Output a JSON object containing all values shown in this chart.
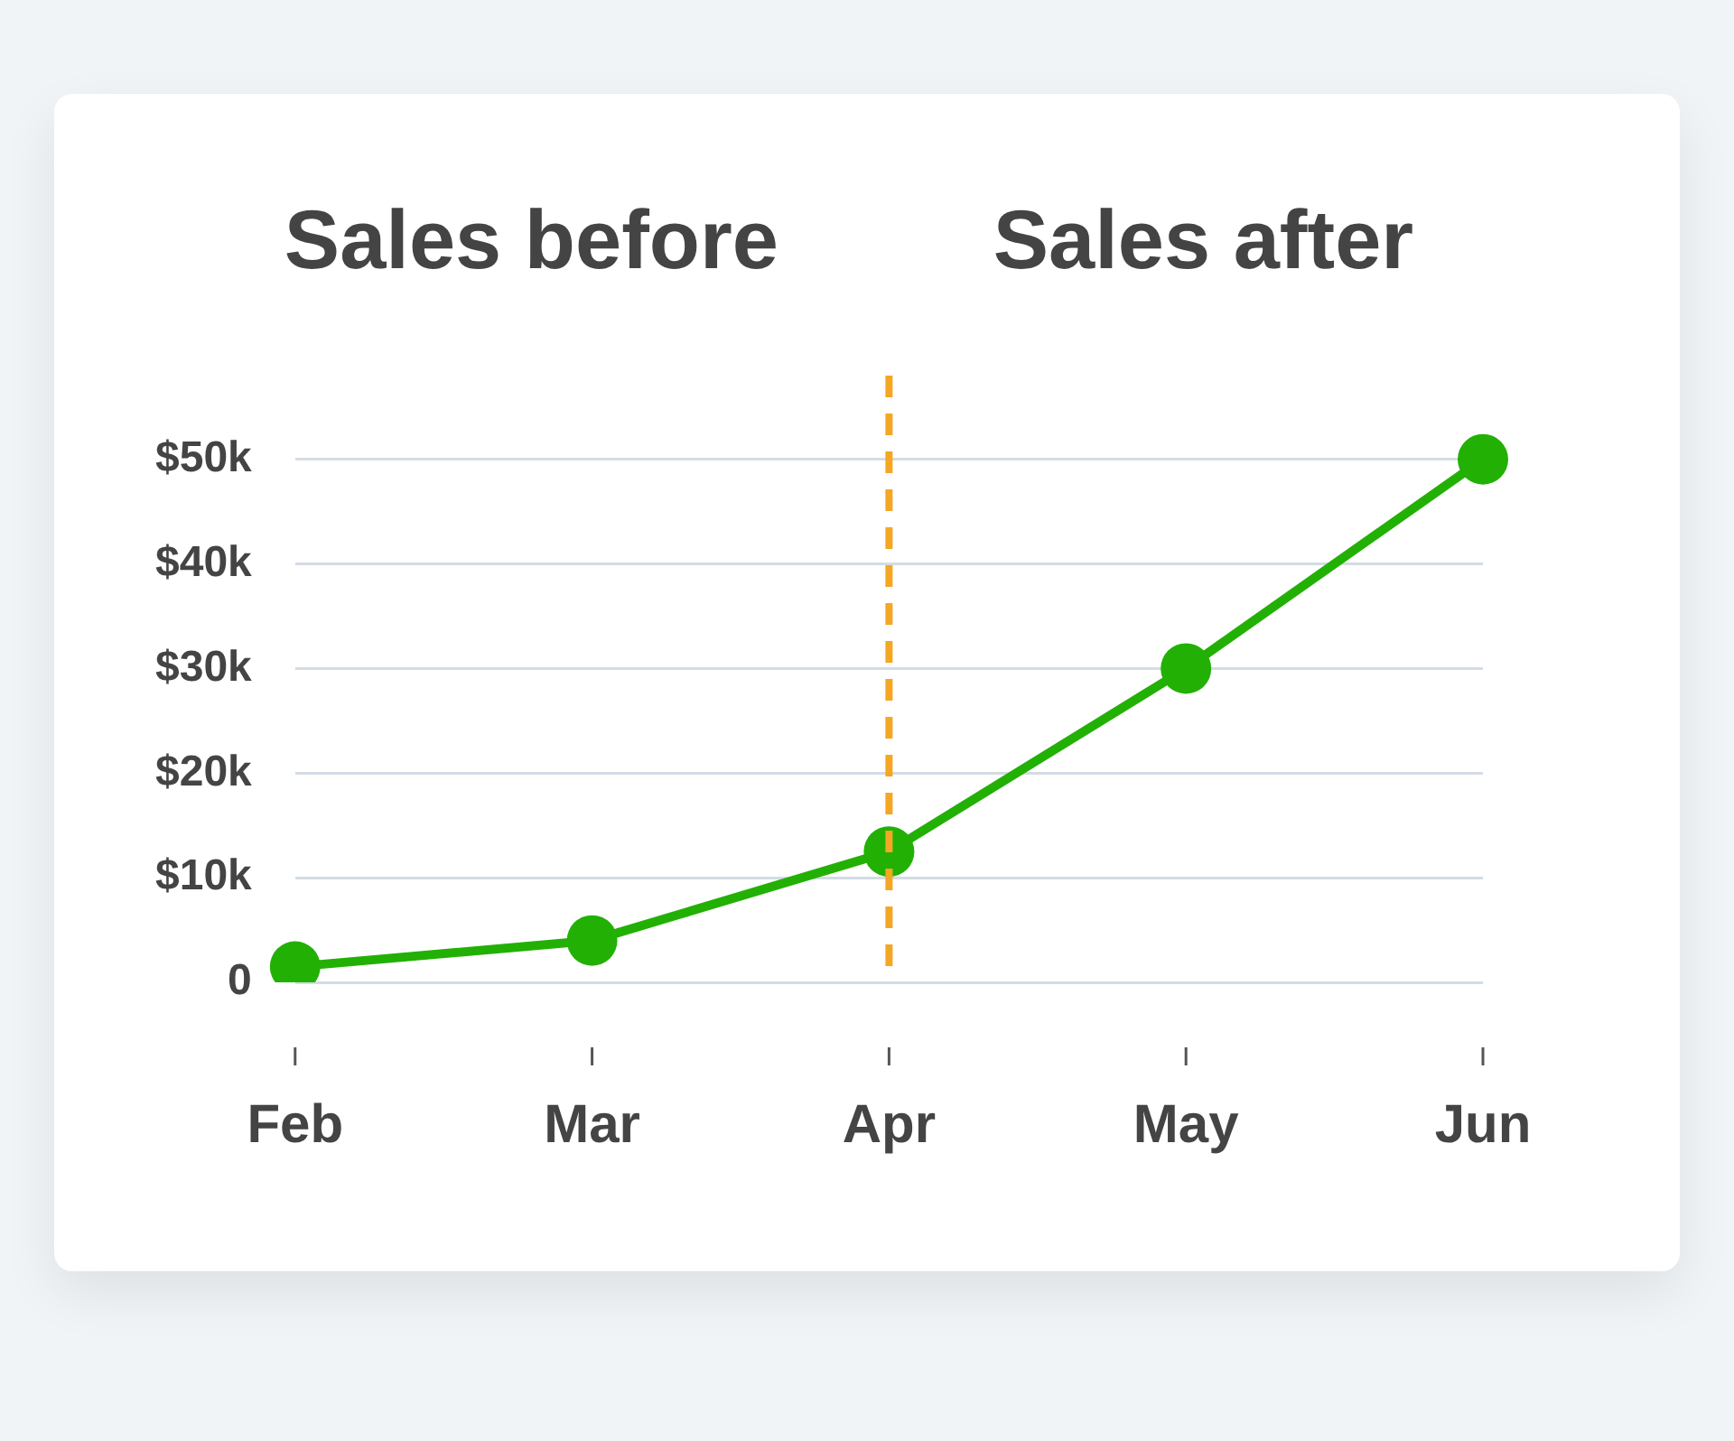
{
  "chart_data": {
    "type": "line",
    "annotations": [
      "Sales before",
      "Sales after"
    ],
    "categories": [
      "Feb",
      "Mar",
      "Apr",
      "May",
      "Jun"
    ],
    "series": [
      {
        "color": "#22b005",
        "values": [
          1500,
          4000,
          12500,
          30000,
          50000
        ]
      }
    ],
    "ylim": [
      0,
      58000
    ],
    "yticks": [
      0,
      {
        "value": 10000,
        "label": "$10k"
      },
      {
        "value": 20000,
        "label": "$20k"
      },
      {
        "value": 30000,
        "label": "$30k"
      },
      {
        "value": 40000,
        "label": "$40k"
      },
      {
        "value": 50000,
        "label": "$50k"
      }
    ],
    "ref_lines": [
      {
        "axis": "x",
        "value": "Apr",
        "color": "#f5a623",
        "line_style": "dashed"
      }
    ],
    "grid": "y",
    "marker": "circle",
    "line_style": "solid"
  }
}
